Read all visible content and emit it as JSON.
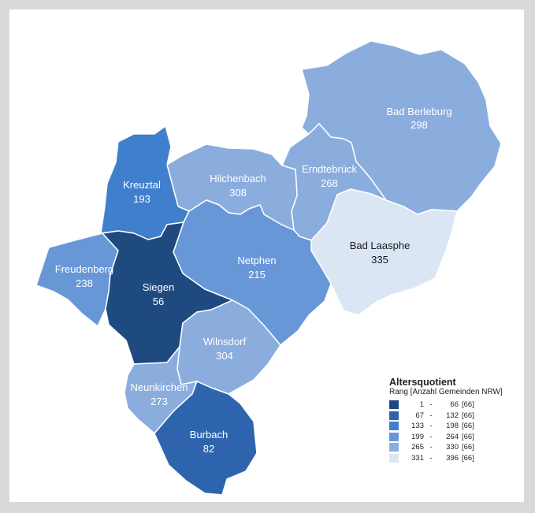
{
  "map": {
    "regions": [
      {
        "id": "bad-berleburg",
        "name": "Bad Berleburg",
        "value": "298",
        "color": "#8badde",
        "text": "#ffffff"
      },
      {
        "id": "erndtebrueck",
        "name": "Erndtebrück",
        "value": "268",
        "color": "#8badde",
        "text": "#ffffff"
      },
      {
        "id": "hilchenbach",
        "name": "Hilchenbach",
        "value": "308",
        "color": "#8badde",
        "text": "#ffffff"
      },
      {
        "id": "kreuztal",
        "name": "Kreuztal",
        "value": "193",
        "color": "#3f7fcb",
        "text": "#ffffff"
      },
      {
        "id": "bad-laasphe",
        "name": "Bad Laasphe",
        "value": "335",
        "color": "#dbe6f5",
        "text": "#1a1a1a"
      },
      {
        "id": "freudenberg",
        "name": "Freudenberg",
        "value": "238",
        "color": "#6897d7",
        "text": "#ffffff"
      },
      {
        "id": "netphen",
        "name": "Netphen",
        "value": "215",
        "color": "#6897d7",
        "text": "#ffffff"
      },
      {
        "id": "siegen",
        "name": "Siegen",
        "value": "56",
        "color": "#1f4a80",
        "text": "#ffffff"
      },
      {
        "id": "wilnsdorf",
        "name": "Wilnsdorf",
        "value": "304",
        "color": "#8badde",
        "text": "#ffffff"
      },
      {
        "id": "neunkirchen",
        "name": "Neunkirchen",
        "value": "273",
        "color": "#8badde",
        "text": "#ffffff"
      },
      {
        "id": "burbach",
        "name": "Burbach",
        "value": "82",
        "color": "#2e64ad",
        "text": "#ffffff"
      }
    ]
  },
  "legend": {
    "title": "Altersquotient",
    "subtitle": "Rang  [Anzahl Gemeinden NRW]",
    "items": [
      {
        "from": "1",
        "dash": "-",
        "to": "66",
        "count": "[66]",
        "color": "#1f4a80"
      },
      {
        "from": "67",
        "dash": "-",
        "to": "132",
        "count": "[66]",
        "color": "#2e64ad"
      },
      {
        "from": "133",
        "dash": "-",
        "to": "198",
        "count": "[66]",
        "color": "#3f7fcb"
      },
      {
        "from": "199",
        "dash": "-",
        "to": "264",
        "count": "[66]",
        "color": "#6897d7"
      },
      {
        "from": "265",
        "dash": "-",
        "to": "330",
        "count": "[66]",
        "color": "#8badde"
      },
      {
        "from": "331",
        "dash": "-",
        "to": "396",
        "count": "[66]",
        "color": "#dbe6f5"
      }
    ]
  }
}
